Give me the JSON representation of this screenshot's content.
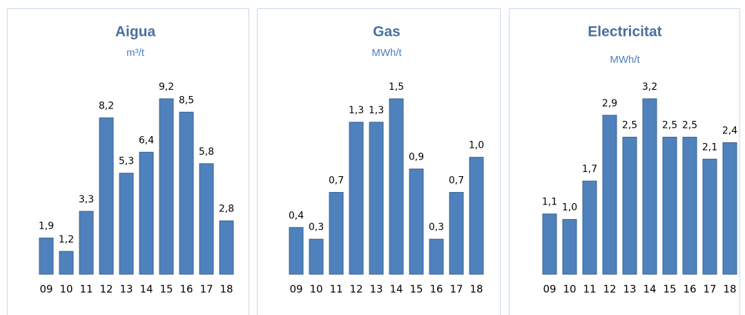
{
  "chart_data": [
    {
      "type": "bar",
      "title": "Aigua",
      "subtitle": "m³/t",
      "color": "#4f81bd",
      "categories": [
        "09",
        "10",
        "11",
        "12",
        "13",
        "14",
        "15",
        "16",
        "17",
        "18"
      ],
      "values": [
        1.9,
        1.2,
        3.3,
        8.2,
        5.3,
        6.4,
        9.2,
        8.5,
        5.8,
        2.8
      ],
      "value_labels": [
        "1,9",
        "1,2",
        "3,3",
        "8,2",
        "5,3",
        "6,4",
        "9,2",
        "8,5",
        "5,8",
        "2,8"
      ]
    },
    {
      "type": "bar",
      "title": "Gas",
      "subtitle": "MWh/t",
      "color": "#4f81bd",
      "categories": [
        "09",
        "10",
        "11",
        "12",
        "13",
        "14",
        "15",
        "16",
        "17",
        "18"
      ],
      "values": [
        0.4,
        0.3,
        0.7,
        1.3,
        1.3,
        1.5,
        0.9,
        0.3,
        0.7,
        1.0
      ],
      "value_labels": [
        "0,4",
        "0,3",
        "0,7",
        "1,3",
        "1,3",
        "1,5",
        "0,9",
        "0,3",
        "0,7",
        "1,0"
      ]
    },
    {
      "type": "bar",
      "title": "Electricitat",
      "subtitle": "MWh/t",
      "color": "#4f81bd",
      "categories": [
        "09",
        "10",
        "11",
        "12",
        "13",
        "14",
        "15",
        "16",
        "17",
        "18"
      ],
      "values": [
        1.1,
        1.0,
        1.7,
        2.9,
        2.5,
        3.2,
        2.5,
        2.5,
        2.1,
        2.4
      ],
      "value_labels": [
        "1,1",
        "1,0",
        "1,7",
        "2,9",
        "2,5",
        "3,2",
        "2,5",
        "2,5",
        "2,1",
        "2,4"
      ]
    }
  ]
}
